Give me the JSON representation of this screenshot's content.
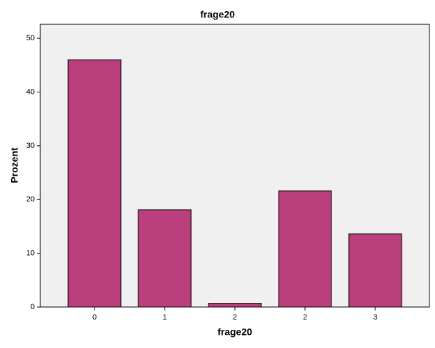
{
  "chart_data": {
    "type": "bar",
    "title": "frage20",
    "x_label": "frage20",
    "y_label": "Prozent",
    "categories": [
      "0",
      "1",
      "2",
      "2",
      "3"
    ],
    "values": [
      46.0,
      18.1,
      0.7,
      21.6,
      13.6
    ],
    "color": "#bb3f7c",
    "ylim": [
      0,
      52.6
    ],
    "yticks": [
      0,
      10,
      20,
      30,
      40,
      50
    ],
    "grid": false
  }
}
